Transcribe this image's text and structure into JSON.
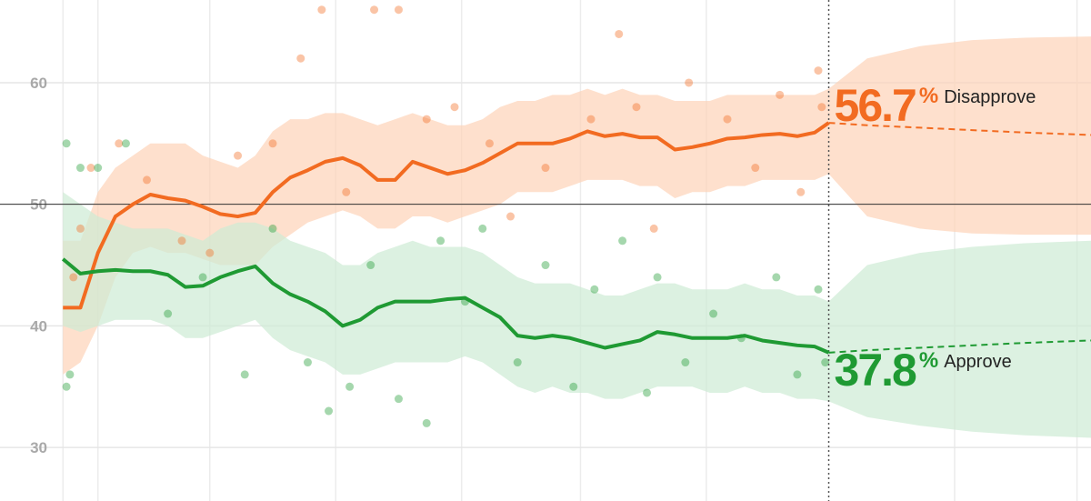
{
  "chart_data": {
    "type": "line",
    "unit": "%",
    "ylim": [
      25.6,
      66.8
    ],
    "yticks": [
      30,
      40,
      50,
      60
    ],
    "reference_line": 50,
    "xlim": [
      -18,
      294
    ],
    "xticks": [
      0,
      10,
      42,
      78,
      114,
      148,
      184,
      255,
      290
    ],
    "now_x": 219,
    "grid": true,
    "x": [
      0,
      5,
      10,
      15,
      20,
      25,
      30,
      35,
      40,
      45,
      50,
      55,
      60,
      65,
      70,
      75,
      80,
      85,
      90,
      95,
      100,
      105,
      110,
      115,
      120,
      125,
      130,
      135,
      140,
      145,
      150,
      155,
      160,
      165,
      170,
      175,
      180,
      185,
      190,
      195,
      200,
      205,
      210,
      215,
      219
    ],
    "series": [
      {
        "name": "Disapprove",
        "color": "#f26b21",
        "band_color": "#fdd3b8",
        "values": [
          41.5,
          41.5,
          46,
          49,
          50,
          50.8,
          50.5,
          50.3,
          49.8,
          49.2,
          49,
          49.3,
          51,
          52.2,
          52.8,
          53.5,
          53.8,
          53.2,
          52,
          52,
          53.5,
          53,
          52.5,
          52.8,
          53.4,
          54.2,
          55,
          55,
          55,
          55.4,
          56,
          55.6,
          55.8,
          55.5,
          55.5,
          54.5,
          54.7,
          55,
          55.4,
          55.5,
          55.7,
          55.8,
          55.6,
          55.9,
          56.7
        ],
        "upper": [
          47,
          47,
          51,
          53,
          54,
          55,
          55,
          55,
          54,
          53.5,
          53,
          54,
          56,
          57,
          57,
          57.5,
          57.5,
          57,
          56.5,
          57,
          57.5,
          57,
          56.5,
          56.5,
          57,
          58,
          58.5,
          58.5,
          59,
          59,
          59.5,
          59,
          59.5,
          59,
          59,
          58.5,
          58.5,
          58.5,
          59,
          59,
          59,
          59,
          59,
          59,
          59.5
        ],
        "lower": [
          36,
          37,
          40,
          44,
          46,
          46.5,
          46,
          46,
          45.5,
          45,
          45,
          45,
          46.5,
          47.5,
          48.5,
          49,
          49.5,
          49,
          48,
          48,
          49,
          49,
          48.5,
          49,
          49.5,
          50,
          51,
          51,
          51,
          51.5,
          52,
          52,
          52,
          51.5,
          51.5,
          50.5,
          51,
          51,
          51.5,
          51.5,
          52,
          52,
          52,
          52,
          52.5
        ],
        "polls_x": [
          3,
          5,
          8,
          16,
          24,
          34,
          42,
          50,
          60,
          68,
          74,
          81,
          89,
          96,
          104,
          112,
          122,
          128,
          138,
          151,
          159,
          164,
          169,
          179,
          190,
          198,
          205,
          211,
          216,
          217
        ],
        "polls_y": [
          44,
          48,
          53,
          55,
          52,
          47,
          46,
          54,
          55,
          62,
          66,
          51,
          66,
          66,
          57,
          58,
          55,
          49,
          53,
          57,
          64,
          58,
          48,
          60,
          57,
          53,
          59,
          51,
          61,
          58
        ],
        "forecast": {
          "x": [
            219,
            230,
            245,
            260,
            275,
            294
          ],
          "values": [
            56.7,
            56.5,
            56.3,
            56.1,
            55.9,
            55.7
          ],
          "upper": [
            59.5,
            62,
            63,
            63.5,
            63.7,
            63.8
          ],
          "lower": [
            52.5,
            49,
            48,
            47.6,
            47.5,
            47.5
          ]
        }
      },
      {
        "name": "Approve",
        "color": "#1f9a33",
        "band_color": "#cdebd4",
        "values": [
          45.5,
          44.3,
          44.5,
          44.6,
          44.5,
          44.5,
          44.2,
          43.2,
          43.3,
          44,
          44.5,
          44.9,
          43.5,
          42.6,
          42,
          41.2,
          40,
          40.5,
          41.5,
          42,
          42,
          42,
          42.2,
          42.3,
          41.5,
          40.7,
          39.2,
          39,
          39.2,
          39,
          38.6,
          38.2,
          38.5,
          38.8,
          39.5,
          39.3,
          39,
          39,
          39,
          39.2,
          38.8,
          38.6,
          38.4,
          38.3,
          37.8
        ],
        "upper": [
          51,
          50,
          49,
          48.5,
          48,
          48,
          48,
          47.5,
          47,
          48,
          48.5,
          48.5,
          48,
          47,
          46.5,
          46,
          45,
          45,
          46,
          46.5,
          47,
          46.5,
          46.5,
          46.5,
          46,
          45,
          44,
          43.5,
          43.5,
          43.5,
          43,
          42.5,
          42.5,
          43,
          43.5,
          43.5,
          43,
          43,
          43,
          43.5,
          43,
          43,
          42.5,
          42.5,
          42
        ],
        "lower": [
          40,
          39.5,
          40,
          40.5,
          40.5,
          40.5,
          40,
          39,
          39,
          39.5,
          40,
          40.5,
          39,
          38,
          37.5,
          37,
          36,
          36,
          36.5,
          37,
          37,
          37,
          37,
          37.5,
          37,
          36,
          35,
          34.5,
          35,
          34.5,
          34.5,
          34,
          34,
          34.5,
          35,
          35,
          35,
          34.5,
          34.5,
          35,
          34.5,
          34.5,
          34,
          34,
          33.8
        ],
        "polls_x": [
          1,
          2,
          1,
          5,
          10,
          18,
          30,
          40,
          52,
          60,
          70,
          76,
          82,
          88,
          96,
          104,
          108,
          115,
          120,
          130,
          138,
          146,
          152,
          160,
          167,
          170,
          178,
          186,
          194,
          204,
          210,
          216,
          218
        ],
        "polls_y": [
          55,
          36,
          35,
          53,
          53,
          55,
          41,
          44,
          36,
          48,
          37,
          33,
          35,
          45,
          34,
          32,
          47,
          42,
          48,
          37,
          45,
          35,
          43,
          47,
          34.5,
          44,
          37,
          41,
          39,
          44,
          36,
          43,
          37
        ],
        "forecast": {
          "x": [
            219,
            230,
            245,
            260,
            275,
            294
          ],
          "values": [
            37.8,
            38,
            38.2,
            38.4,
            38.6,
            38.8
          ],
          "upper": [
            42,
            45,
            46,
            46.5,
            46.8,
            47
          ],
          "lower": [
            33.8,
            32.5,
            31.8,
            31.3,
            31,
            30.8
          ]
        }
      }
    ]
  }
}
